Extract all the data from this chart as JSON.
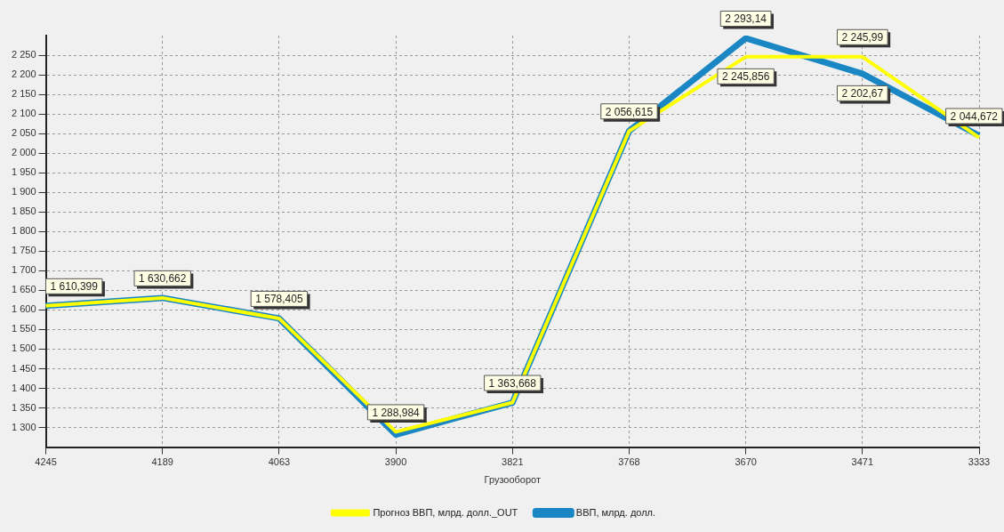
{
  "chart_data": {
    "type": "line",
    "xlabel": "Грузооборот",
    "categories": [
      "4245",
      "4189",
      "4063",
      "3900",
      "3821",
      "3768",
      "3670",
      "3471",
      "3333"
    ],
    "series": [
      {
        "name": "ВВП, млрд. долл.",
        "color": "#1a87c4",
        "values": [
          1610.399,
          1630.662,
          1578.405,
          1282,
          1363.668,
          2056.615,
          2293.14,
          2202.67,
          2044.672
        ],
        "value_labels": [
          "1 610,399",
          "1 630,662",
          "1 578,405",
          null,
          "1 363,668",
          "2 056,615",
          "2 293,14",
          "2 202,67",
          "2 044,672"
        ]
      },
      {
        "name": "Прогноз ВВП, млрд. долл._OUT",
        "color": "#ffff00",
        "values": [
          1610.399,
          1630.662,
          1578.405,
          1288.984,
          1363.668,
          2056.615,
          2245.856,
          2245.99,
          2040
        ],
        "value_labels": [
          null,
          null,
          null,
          "1 288,984",
          null,
          null,
          "2 245,856",
          "2 245,99",
          null
        ]
      }
    ],
    "ylim": [
      1250,
      2300
    ],
    "yticks": [
      {
        "value": 1300,
        "label": "1 300"
      },
      {
        "value": 1350,
        "label": "1 350"
      },
      {
        "value": 1400,
        "label": "1 400"
      },
      {
        "value": 1450,
        "label": "1 450"
      },
      {
        "value": 1500,
        "label": "1 500"
      },
      {
        "value": 1550,
        "label": "1 550"
      },
      {
        "value": 1600,
        "label": "1 600"
      },
      {
        "value": 1650,
        "label": "1 650"
      },
      {
        "value": 1700,
        "label": "1 700"
      },
      {
        "value": 1750,
        "label": "1 750"
      },
      {
        "value": 1800,
        "label": "1 800"
      },
      {
        "value": 1850,
        "label": "1 850"
      },
      {
        "value": 1900,
        "label": "1 900"
      },
      {
        "value": 1950,
        "label": "1 950"
      },
      {
        "value": 2000,
        "label": "2 000"
      },
      {
        "value": 2050,
        "label": "2 050"
      },
      {
        "value": 2100,
        "label": "2 100"
      },
      {
        "value": 2150,
        "label": "2 150"
      },
      {
        "value": 2200,
        "label": "2 200"
      },
      {
        "value": 2250,
        "label": "2 250"
      }
    ],
    "grid": true,
    "legend": "bottom",
    "marker": "none",
    "line_style": "solid"
  }
}
